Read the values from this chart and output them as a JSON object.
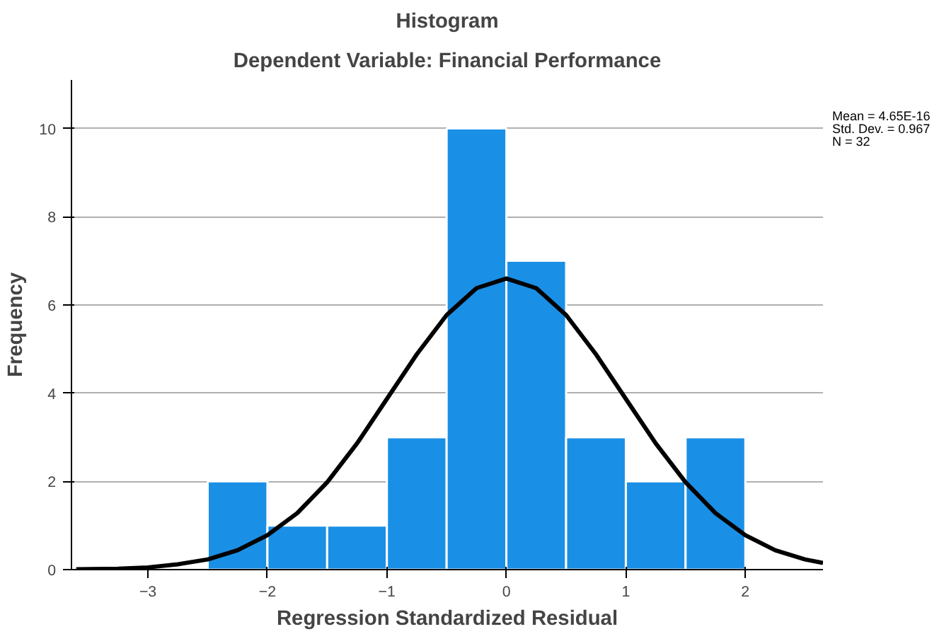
{
  "chart_data": {
    "type": "histogram",
    "title": "Histogram",
    "subtitle": "Dependent Variable: Financial Performance",
    "xlabel": "Regression Standardized Residual",
    "ylabel": "Frequency",
    "bins": [
      -2.5,
      -2,
      -1.5,
      -1,
      -0.5,
      0,
      0.5,
      1,
      1.5,
      2
    ],
    "values": [
      2,
      1,
      1,
      3,
      10,
      7,
      3,
      2,
      3
    ],
    "color": "#1a8fe6",
    "series": [
      {
        "type": "line",
        "color": "#000000",
        "x": [
          -3.6,
          -3.25,
          -3,
          -2.75,
          -2.5,
          -2.25,
          -2,
          -1.75,
          -1.5,
          -1.25,
          -1,
          -0.75,
          -0.5,
          -0.25,
          0,
          0.25,
          0.5,
          0.75,
          1,
          1.25,
          1.5,
          1.75,
          2,
          2.25,
          2.5,
          2.65
        ],
        "values": [
          0.01,
          0.02,
          0.05,
          0.12,
          0.23,
          0.44,
          0.78,
          1.28,
          1.98,
          2.86,
          3.87,
          4.88,
          5.77,
          6.38,
          6.6,
          6.38,
          5.77,
          4.88,
          3.87,
          2.86,
          1.98,
          1.28,
          0.78,
          0.44,
          0.23,
          0.15
        ]
      }
    ],
    "xlim": [
      -3.64,
      2.65
    ],
    "ylim": [
      0,
      11.1
    ],
    "xticks": [
      -3,
      -2,
      -1,
      0,
      1,
      2
    ],
    "yticks": [
      0,
      2,
      4,
      6,
      8,
      10
    ],
    "grid": "y",
    "annotations": [
      "Mean = 4.65E-16",
      "Std. Dev. = 0.967",
      "N = 32"
    ]
  }
}
